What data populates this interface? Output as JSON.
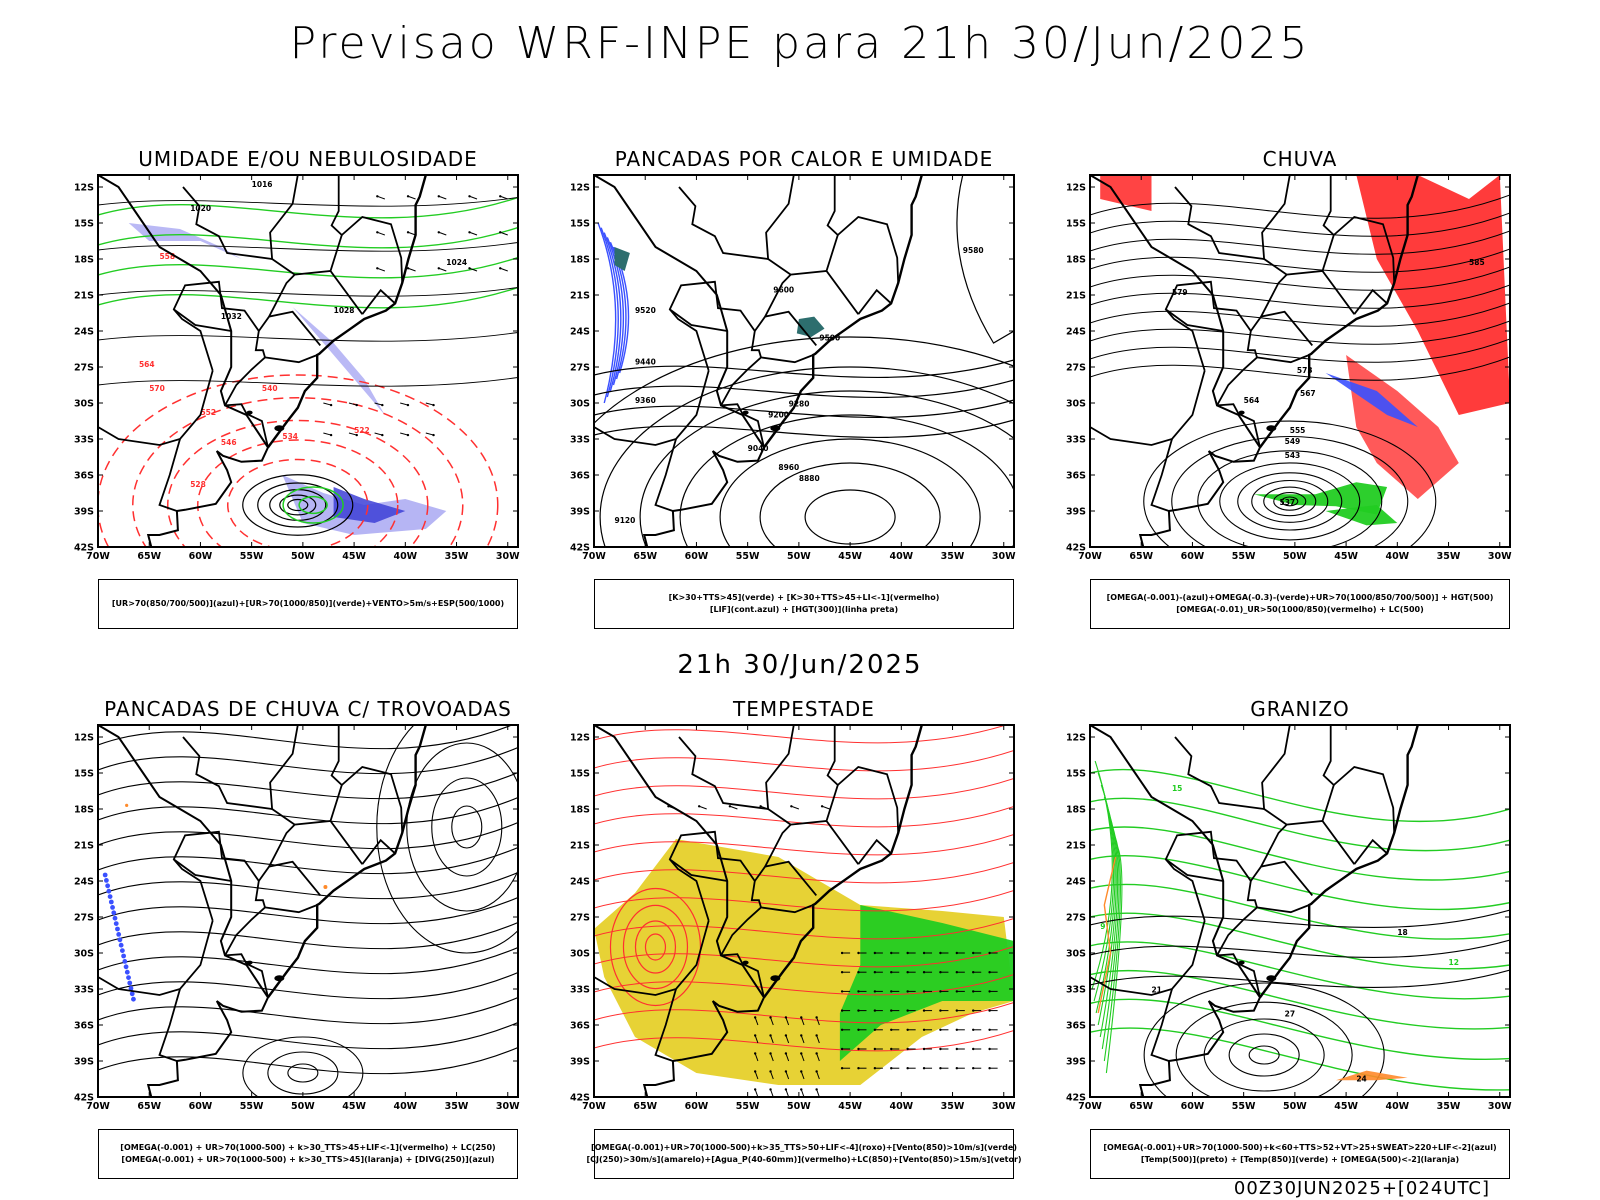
{
  "main_title": "Previsao WRF-INPE  para 21h 30/Jun/2025",
  "mid_title": "21h 30/Jun/2025",
  "footer_id": "00Z30JUN2025+[024UTC]",
  "axes": {
    "lat_labels": [
      "12S",
      "15S",
      "18S",
      "21S",
      "24S",
      "27S",
      "30S",
      "33S",
      "36S",
      "39S",
      "42S"
    ],
    "lon_labels": [
      "70W",
      "65W",
      "60W",
      "55W",
      "50W",
      "45W",
      "40W",
      "35W",
      "30W"
    ]
  },
  "colors": {
    "blue": "#3a50ff",
    "green": "#22cc22",
    "red": "#ff3030",
    "lavender": "#a9a8f2",
    "yellow": "#e6d02a",
    "orange": "#ff8a2a",
    "purple": "#7a2aa8",
    "teal": "#2d6e6e"
  },
  "panels": [
    {
      "id": "umidade",
      "title": "UMIDADE E/OU NEBULOSIDADE",
      "legend": [
        "[UR>70(850/700/500)](azul)+[UR>70(1000/850)](verde)+VENTO>5m/s+ESP(500/1000)"
      ],
      "contour_labels": [
        {
          "t": "1016",
          "c": "black"
        },
        {
          "t": "1020",
          "c": "black"
        },
        {
          "t": "1024",
          "c": "black"
        },
        {
          "t": "1028",
          "c": "black"
        },
        {
          "t": "1032",
          "c": "black"
        },
        {
          "t": "570",
          "c": "red"
        },
        {
          "t": "564",
          "c": "red"
        },
        {
          "t": "558",
          "c": "red"
        },
        {
          "t": "552",
          "c": "red"
        },
        {
          "t": "546",
          "c": "red"
        },
        {
          "t": "540",
          "c": "red"
        },
        {
          "t": "534",
          "c": "red"
        },
        {
          "t": "528",
          "c": "red"
        },
        {
          "t": "522",
          "c": "red"
        }
      ]
    },
    {
      "id": "pancadas-calor",
      "title": "PANCADAS POR CALOR E UMIDADE",
      "legend": [
        "[K>30+TTS>45](verde) + [K>30+TTS>45+LI<-1](vermelho)",
        "[LIF](cont.azul) + [HGT(300)](linha preta)"
      ],
      "contour_labels": [
        {
          "t": "9580",
          "c": "black"
        },
        {
          "t": "9600",
          "c": "black"
        },
        {
          "t": "9520",
          "c": "black"
        },
        {
          "t": "9500",
          "c": "black"
        },
        {
          "t": "9440",
          "c": "black"
        },
        {
          "t": "9360",
          "c": "black"
        },
        {
          "t": "9280",
          "c": "black"
        },
        {
          "t": "9200",
          "c": "black"
        },
        {
          "t": "9120",
          "c": "black"
        },
        {
          "t": "9040",
          "c": "black"
        },
        {
          "t": "8960",
          "c": "black"
        },
        {
          "t": "8880",
          "c": "black"
        }
      ]
    },
    {
      "id": "chuva",
      "title": "CHUVA",
      "legend": [
        "[OMEGA(-0.001)-(azul)+OMEGA(-0.3)-(verde)+UR>70(1000/850/700/500)] + HGT(500)",
        "[OMEGA(-0.01)_UR>50(1000/850)(vermelho) + LC(500)"
      ],
      "contour_labels": [
        {
          "t": "585",
          "c": "black"
        },
        {
          "t": "579",
          "c": "black"
        },
        {
          "t": "573",
          "c": "black"
        },
        {
          "t": "567",
          "c": "black"
        },
        {
          "t": "564",
          "c": "black"
        },
        {
          "t": "555",
          "c": "black"
        },
        {
          "t": "549",
          "c": "black"
        },
        {
          "t": "543",
          "c": "black"
        },
        {
          "t": "537",
          "c": "black"
        }
      ]
    },
    {
      "id": "trovoadas",
      "title": "PANCADAS DE CHUVA C/ TROVOADAS",
      "legend": [
        "[OMEGA(-0.001) + UR>70(1000-500) + k>30_TTS>45+LIF<-1](vermelho) + LC(250)",
        "[OMEGA(-0.001) + UR>70(1000-500) + k>30_TTS>45](laranja) + [DIVG(250)](azul)"
      ],
      "contour_labels": []
    },
    {
      "id": "tempestade",
      "title": "TEMPESTADE",
      "legend": [
        "[OMEGA(-0.001)+UR>70(1000-500)+k>35_TTS>50+LIF<-4](roxo)+[Vento(850)>10m/s](verde)",
        "[CJ(250)>30m/s](amarelo)+[Agua_P(40-60mm)](vermelho)+LC(850)+[Vento(850)>15m/s](vetor)"
      ],
      "contour_labels": []
    },
    {
      "id": "granizo",
      "title": "GRANIZO",
      "legend": [
        "[OMEGA(-0.001)+UR>70(1000-500)+k<60+TTS>52+VT>25+SWEAT>220+LIF<-2](azul)",
        "[Temp(500)](preto) + [Temp(850)](verde) + [OMEGA(500)<-2](laranja)"
      ],
      "contour_labels": [
        {
          "t": "18",
          "c": "black"
        },
        {
          "t": "21",
          "c": "black"
        },
        {
          "t": "27",
          "c": "black"
        },
        {
          "t": "24",
          "c": "black"
        },
        {
          "t": "15",
          "c": "green"
        },
        {
          "t": "12",
          "c": "green"
        },
        {
          "t": "9",
          "c": "green"
        }
      ]
    }
  ]
}
